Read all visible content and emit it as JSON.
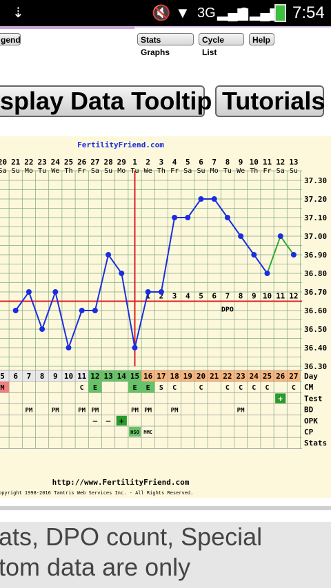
{
  "status_bar": {
    "network": "3G",
    "carrier_label": "G",
    "time": "7:54"
  },
  "toolbar_small": {
    "legend_label": "gend",
    "stats_graphs_label": "Stats Graphs",
    "cycle_list_label": "Cycle List",
    "help_label": "Help"
  },
  "toolbar_big": {
    "tooltip_label": "splay Data Tooltip",
    "tutorials_label": "Tutorials"
  },
  "chart_data": {
    "type": "line",
    "title": "FertilityFriend.com",
    "footer_url": "http://www.FertilityFriend.com",
    "copyright": "opyright 1998-2016 Tamtris Web Services Inc. - All Rights Reserved.",
    "dates": [
      "20",
      "21",
      "22",
      "23",
      "24",
      "25",
      "26",
      "27",
      "28",
      "29",
      "1",
      "2",
      "3",
      "4",
      "5",
      "6",
      "7",
      "8",
      "9",
      "10",
      "11",
      "12",
      "13"
    ],
    "weekdays": [
      "Sa",
      "Su",
      "Mo",
      "Tu",
      "We",
      "Th",
      "Fr",
      "Sa",
      "Su",
      "Mo",
      "Tu",
      "We",
      "Th",
      "Fr",
      "Sa",
      "Su",
      "Mo",
      "Tu",
      "We",
      "Th",
      "Fr",
      "Sa",
      "Su"
    ],
    "days": [
      "5",
      "6",
      "7",
      "8",
      "9",
      "10",
      "11",
      "12",
      "13",
      "14",
      "15",
      "16",
      "17",
      "18",
      "19",
      "20",
      "21",
      "22",
      "23",
      "24",
      "25",
      "26",
      "27"
    ],
    "y_ticks": [
      "37.30",
      "37.20",
      "37.10",
      "37.00",
      "36.90",
      "36.80",
      "36.70",
      "36.60",
      "36.50",
      "36.40",
      "36.30"
    ],
    "ylim": [
      36.3,
      37.3
    ],
    "temps": [
      36.6,
      36.7,
      36.5,
      36.7,
      36.4,
      36.6,
      36.6,
      36.9,
      36.8,
      36.4,
      36.7,
      36.7,
      37.1,
      37.1,
      37.2,
      37.2,
      37.1,
      37.0,
      36.9,
      36.8
    ],
    "temps_x_index": [
      1,
      2,
      3,
      4,
      5,
      6,
      7,
      8,
      9,
      10,
      11,
      12,
      13,
      14,
      15,
      16,
      17,
      18,
      19,
      20
    ],
    "green_temps": [
      36.8,
      37.0,
      36.9
    ],
    "green_x_index": [
      20,
      21,
      22
    ],
    "coverline": 36.65,
    "ovulation_day_index": 10,
    "dpo_numbers": [
      "1",
      "2",
      "3",
      "4",
      "5",
      "6",
      "7",
      "8",
      "9",
      "10",
      "11",
      "12"
    ],
    "dpo_label": "DPO",
    "row_labels": [
      "Day",
      "CM",
      "Test",
      "BD",
      "OPK",
      "CP",
      "Stats"
    ],
    "cm": [
      "M",
      "",
      "",
      "",
      "",
      "",
      "C",
      "E",
      "",
      "",
      "E",
      "E",
      "S",
      "C",
      "",
      "C",
      "",
      "C",
      "C",
      "C",
      "C",
      "",
      "C"
    ],
    "test": [
      "",
      "",
      "",
      "",
      "",
      "",
      "",
      "",
      "",
      "",
      "",
      "",
      "",
      "",
      "",
      "",
      "",
      "",
      "",
      "",
      "",
      "+",
      ""
    ],
    "bd": [
      "",
      "",
      "PM",
      "",
      "PM",
      "",
      "PM",
      "PM",
      "",
      "",
      "PM",
      "PM",
      "",
      "PM",
      "",
      "",
      "",
      "",
      "PM",
      "",
      "",
      "",
      ""
    ],
    "opk": [
      "",
      "",
      "",
      "",
      "",
      "",
      "",
      "–",
      "–",
      "+",
      "",
      "",
      "",
      "",
      "",
      "",
      "",
      "",
      "",
      "",
      "",
      "",
      ""
    ],
    "cp": [
      "",
      "",
      "",
      "",
      "",
      "",
      "",
      "",
      "",
      "",
      "HSO",
      "MMC",
      "",
      "",
      "",
      "",
      "",
      "",
      "",
      "",
      "",
      "",
      ""
    ]
  },
  "bottom_text": {
    "line1": "ats, DPO count, Special",
    "line2": "tom data are only"
  },
  "colors": {
    "line_blue": "#1a2ee0",
    "line_green": "#33aa33",
    "coverline_red": "#e02020",
    "grid": "#7fa87f",
    "chart_bg": "#fdf8dc",
    "day_green": "#66c266",
    "day_orange": "#f6b67e",
    "cm_pink": "#f08080"
  }
}
